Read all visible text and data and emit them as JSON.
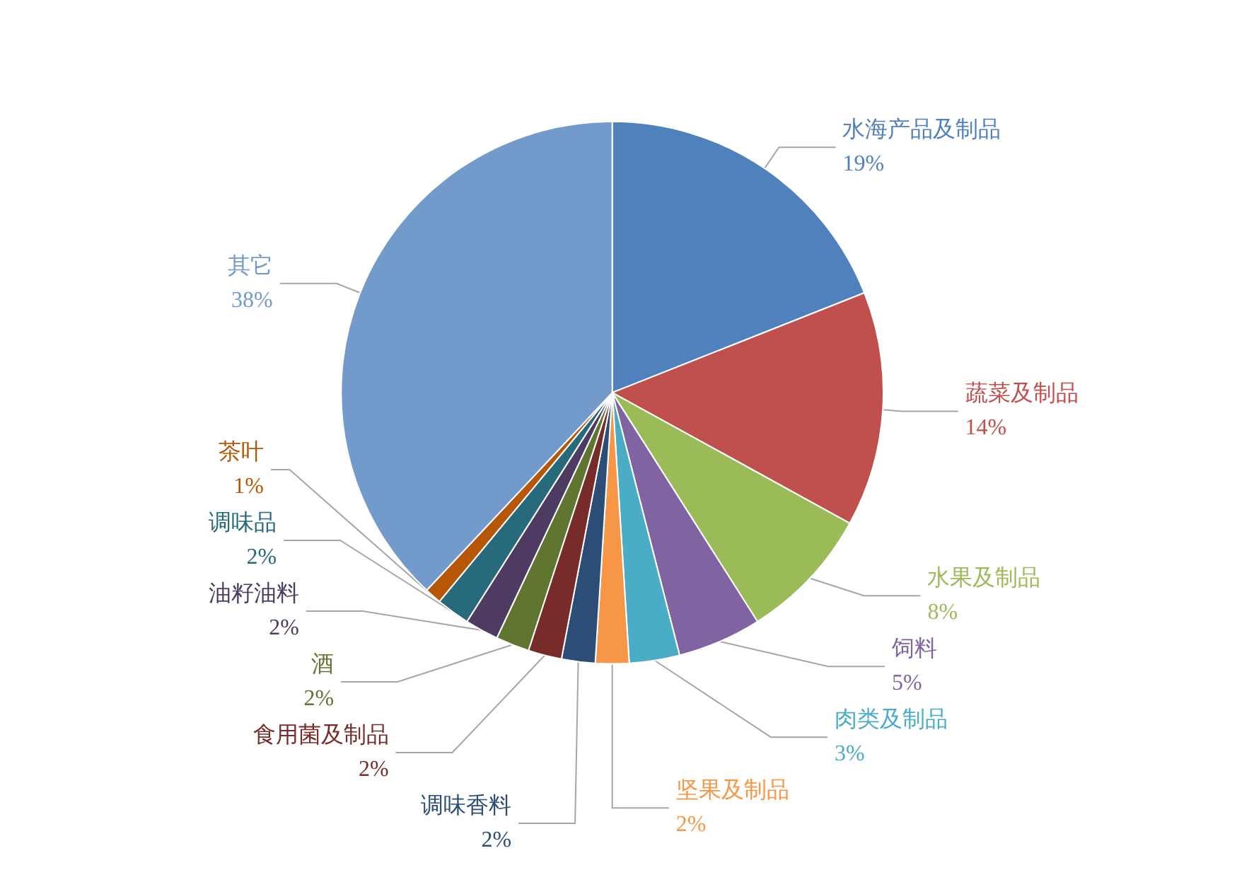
{
  "chart_data": {
    "type": "pie",
    "categories": [
      "水海产品及制品",
      "蔬菜及制品",
      "水果及制品",
      "饲料",
      "肉类及制品",
      "坚果及制品",
      "调味香料",
      "食用菌及制品",
      "酒",
      "油籽油料",
      "调味品",
      "茶叶",
      "其它"
    ],
    "values": [
      19,
      14,
      8,
      5,
      3,
      2,
      2,
      2,
      2,
      2,
      2,
      1,
      38
    ],
    "colors": [
      "#4f81bd",
      "#c0504d",
      "#9bbb59",
      "#8064a2",
      "#4bacc6",
      "#f79646",
      "#2c4d75",
      "#772c2a",
      "#5f7530",
      "#4d3b62",
      "#276a7c",
      "#b65708",
      "#729aca"
    ],
    "value_labels": [
      "19%",
      "14%",
      "8%",
      "5%",
      "3%",
      "2%",
      "2%",
      "2%",
      "2%",
      "2%",
      "2%",
      "1%",
      "38%"
    ],
    "legend": false
  }
}
